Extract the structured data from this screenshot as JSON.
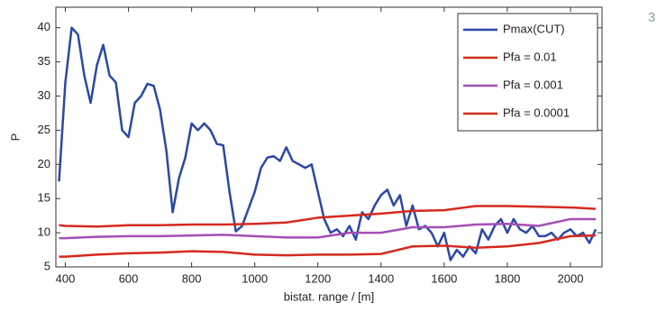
{
  "page_number": "3",
  "chart_data": {
    "type": "line",
    "xlabel": "bistat. range / [m]",
    "ylabel": "P",
    "xlim": [
      370,
      2100
    ],
    "ylim": [
      5,
      43
    ],
    "xticks": [
      400,
      600,
      800,
      1000,
      1200,
      1400,
      1600,
      1800,
      2000
    ],
    "yticks": [
      5,
      10,
      15,
      20,
      25,
      30,
      35,
      40
    ],
    "legend": "upper right",
    "series": [
      {
        "name": "Pmax(CUT)",
        "color": "#2a48a6",
        "x": [
          380,
          400,
          420,
          440,
          460,
          480,
          500,
          520,
          540,
          560,
          580,
          600,
          620,
          640,
          660,
          680,
          700,
          720,
          740,
          760,
          780,
          800,
          820,
          840,
          860,
          880,
          900,
          920,
          940,
          960,
          980,
          1000,
          1020,
          1040,
          1060,
          1080,
          1100,
          1120,
          1140,
          1160,
          1180,
          1200,
          1220,
          1240,
          1260,
          1280,
          1300,
          1320,
          1340,
          1360,
          1380,
          1400,
          1420,
          1440,
          1460,
          1480,
          1500,
          1520,
          1540,
          1560,
          1580,
          1600,
          1620,
          1640,
          1660,
          1680,
          1700,
          1720,
          1740,
          1760,
          1780,
          1800,
          1820,
          1840,
          1860,
          1880,
          1900,
          1920,
          1940,
          1960,
          1980,
          2000,
          2020,
          2040,
          2060,
          2080
        ],
        "values": [
          17.5,
          32,
          40,
          39,
          33,
          29,
          34.5,
          37.5,
          33,
          32,
          25,
          24,
          29,
          30,
          31.8,
          31.5,
          28,
          22,
          13,
          18,
          21,
          26,
          25,
          26,
          25,
          23,
          22.8,
          16,
          10.2,
          11,
          13.5,
          16,
          19.5,
          21,
          21.2,
          20.5,
          22.5,
          20.5,
          20,
          19.5,
          20,
          16,
          12,
          10,
          10.5,
          9.5,
          11,
          9,
          13,
          12,
          14,
          15.5,
          16.3,
          14,
          15.5,
          11,
          14,
          10.5,
          11,
          10,
          8,
          10,
          6,
          7.5,
          6.5,
          8,
          7,
          10.5,
          9,
          11,
          12,
          10,
          12,
          10.5,
          10,
          11,
          9.5,
          9.5,
          10,
          9,
          10,
          10.5,
          9.5,
          10,
          8.5,
          10.5
        ]
      },
      {
        "name": "Pfa = 0.01",
        "color": "#d42a1f",
        "x": [
          380,
          400,
          500,
          600,
          700,
          800,
          900,
          1000,
          1100,
          1200,
          1300,
          1400,
          1500,
          1600,
          1700,
          1800,
          1900,
          2000,
          2080
        ],
        "values": [
          11.1,
          11,
          10.9,
          11.1,
          11.1,
          11.2,
          11.2,
          11.3,
          11.5,
          12.2,
          12.5,
          12.8,
          13.2,
          13.3,
          13.9,
          13.9,
          13.8,
          13.7,
          13.5
        ]
      },
      {
        "name": "Pfa = 0.001",
        "color": "#a44fb5",
        "x": [
          380,
          400,
          500,
          600,
          700,
          800,
          900,
          1000,
          1100,
          1200,
          1300,
          1400,
          1500,
          1600,
          1700,
          1800,
          1900,
          2000,
          2080
        ],
        "values": [
          9.2,
          9.2,
          9.4,
          9.5,
          9.5,
          9.6,
          9.7,
          9.5,
          9.3,
          9.3,
          10,
          10,
          10.8,
          10.8,
          11.2,
          11.3,
          11,
          12,
          12
        ]
      },
      {
        "name": "Pfa = 0.0001",
        "color": "#d42a1f",
        "x": [
          380,
          400,
          500,
          600,
          700,
          800,
          900,
          1000,
          1100,
          1200,
          1300,
          1400,
          1500,
          1600,
          1700,
          1800,
          1900,
          2000,
          2080
        ],
        "values": [
          6.5,
          6.5,
          6.8,
          7,
          7.1,
          7.3,
          7.2,
          6.8,
          6.7,
          6.8,
          6.8,
          6.9,
          8,
          8.1,
          7.8,
          8,
          8.5,
          9.5,
          9.6
        ]
      }
    ]
  }
}
